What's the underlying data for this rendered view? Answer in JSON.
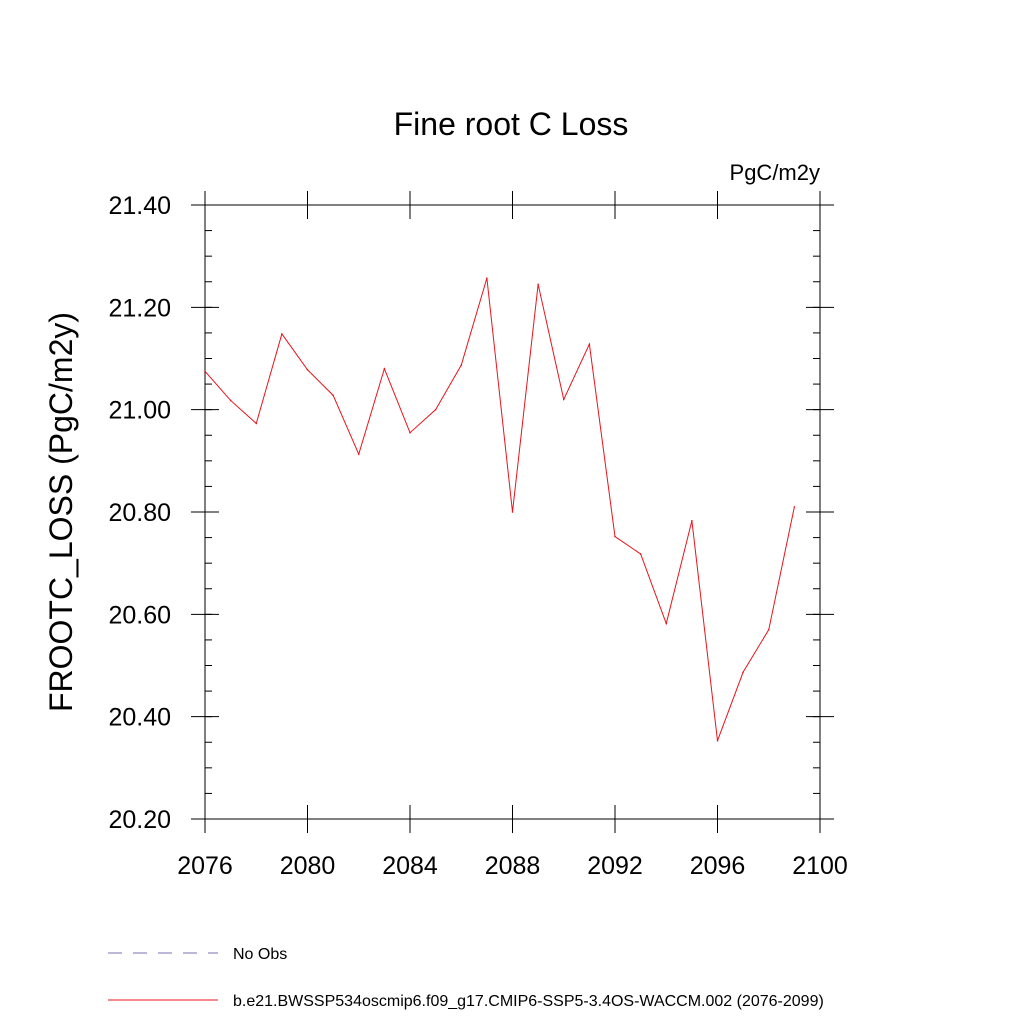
{
  "chart_data": {
    "type": "line",
    "title": "Fine root C Loss",
    "units_label": "PgC/m2y",
    "ylabel": "FROOTC_LOSS  (PgC/m2y)",
    "xlabel": "",
    "xlim": [
      2076,
      2100
    ],
    "ylim": [
      20.2,
      21.4
    ],
    "x_ticks": [
      2076,
      2080,
      2084,
      2088,
      2092,
      2096,
      2100
    ],
    "x_tick_labels": [
      "2076",
      "2080",
      "2084",
      "2088",
      "2092",
      "2096",
      "2100"
    ],
    "y_ticks": [
      20.2,
      20.4,
      20.6,
      20.8,
      21.0,
      21.2,
      21.4
    ],
    "y_tick_labels": [
      "20.20",
      "20.40",
      "20.60",
      "20.80",
      "21.00",
      "21.20",
      "21.40"
    ],
    "grid": false,
    "legend_placement": "bottom",
    "series": [
      {
        "name": "b.e21.BWSSP534oscmip6.f09_g17.CMIP6-SSP5-3.4OS-WACCM.002 (2076-2099)",
        "color": "#e8141c",
        "style": "solid",
        "x": [
          2076,
          2077,
          2078,
          2079,
          2080,
          2081,
          2082,
          2083,
          2084,
          2085,
          2086,
          2087,
          2088,
          2089,
          2090,
          2091,
          2092,
          2093,
          2094,
          2095,
          2096,
          2097,
          2098,
          2099
        ],
        "y": [
          21.075,
          21.018,
          20.973,
          21.148,
          21.078,
          21.028,
          20.913,
          21.08,
          20.955,
          21.0,
          21.087,
          21.257,
          20.8,
          21.245,
          21.02,
          21.128,
          20.752,
          20.718,
          20.582,
          20.783,
          20.353,
          20.487,
          20.57,
          20.81
        ]
      }
    ],
    "legend": [
      {
        "label": "No Obs",
        "color": "#7b6fb5",
        "style": "dashed"
      },
      {
        "label": "b.e21.BWSSP534oscmip6.f09_g17.CMIP6-SSP5-3.4OS-WACCM.002 (2076-2099)",
        "color": "#e8141c",
        "style": "solid"
      }
    ]
  }
}
